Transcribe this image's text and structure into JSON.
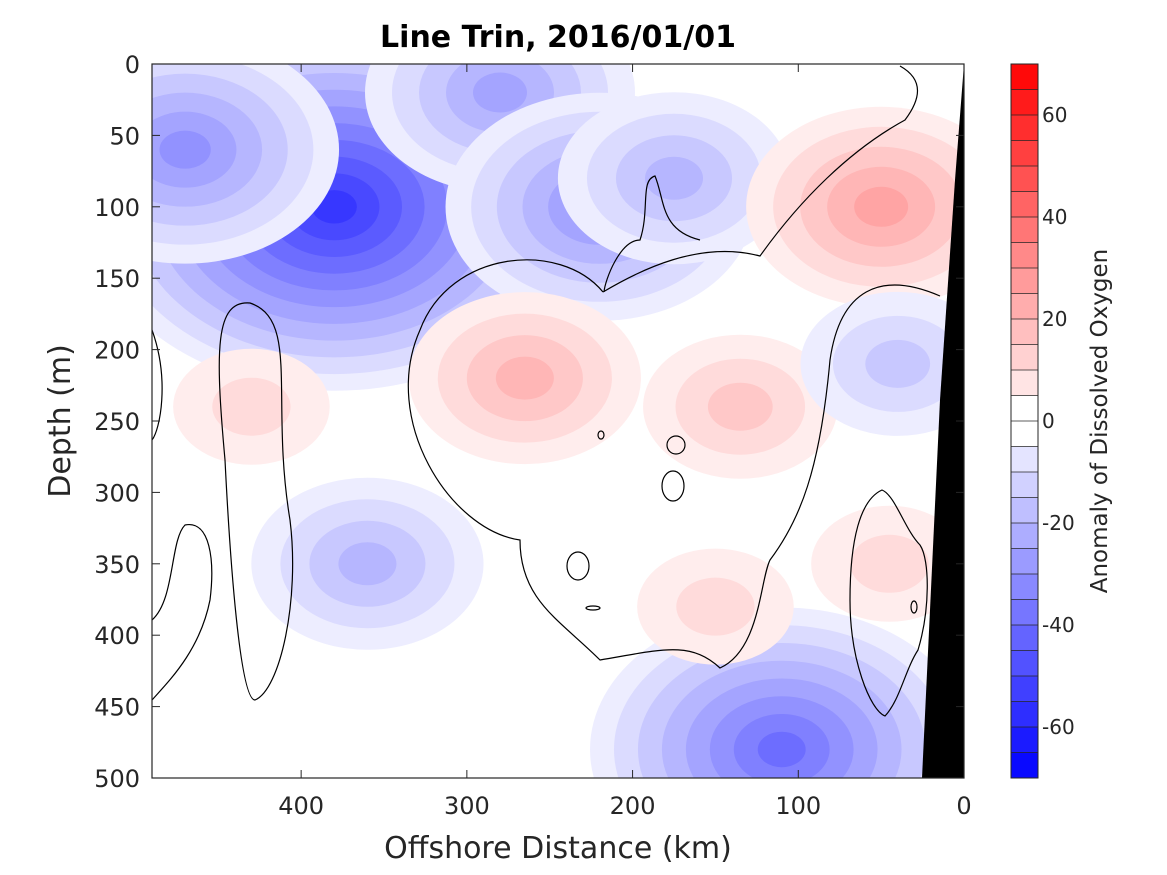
{
  "chart_data": {
    "type": "heatmap",
    "title": "Line Trin, 2016/01/01",
    "xlabel": "Offshore Distance (km)",
    "ylabel": "Depth (m)",
    "colorbar_label": "Anomaly of Dissolved Oxygen",
    "xlim": [
      490,
      0
    ],
    "ylim": [
      500,
      0
    ],
    "x_reversed": true,
    "y_reversed": true,
    "x_ticks": [
      400,
      300,
      200,
      100,
      0
    ],
    "x_tick_labels": [
      "400",
      "300",
      "200",
      "100",
      "0"
    ],
    "y_ticks": [
      0,
      50,
      100,
      150,
      200,
      250,
      300,
      350,
      400,
      450,
      500
    ],
    "y_tick_labels": [
      "0",
      "50",
      "100",
      "150",
      "200",
      "250",
      "300",
      "350",
      "400",
      "450",
      "500"
    ],
    "colorbar_range": [
      -70,
      70
    ],
    "colorbar_step": 5,
    "colorbar_ticks": [
      60,
      40,
      20,
      0,
      -20,
      -40,
      -60
    ],
    "colorbar_tick_labels": [
      "60",
      "40",
      "20",
      "0",
      "-20",
      "-40",
      "-60"
    ],
    "zero_contour": true,
    "mask_color": "#000000",
    "grid": false,
    "anomaly_features": [
      {
        "x": 380,
        "y": 100,
        "value": -55
      },
      {
        "x": 470,
        "y": 60,
        "value": -32
      },
      {
        "x": 280,
        "y": 20,
        "value": -25
      },
      {
        "x": 220,
        "y": 100,
        "value": -30
      },
      {
        "x": 175,
        "y": 80,
        "value": -20
      },
      {
        "x": 360,
        "y": 350,
        "value": -18
      },
      {
        "x": 110,
        "y": 480,
        "value": -40
      },
      {
        "x": 50,
        "y": 100,
        "value": 25
      },
      {
        "x": 430,
        "y": 240,
        "value": 12
      },
      {
        "x": 265,
        "y": 220,
        "value": 18
      },
      {
        "x": 135,
        "y": 240,
        "value": 15
      },
      {
        "x": 150,
        "y": 380,
        "value": 10
      },
      {
        "x": 45,
        "y": 350,
        "value": 12
      },
      {
        "x": 40,
        "y": 210,
        "value": -15
      }
    ]
  },
  "colors": {
    "negative_end": "#0000ff",
    "positive_end": "#ff0000",
    "neutral": "#ffffff"
  }
}
